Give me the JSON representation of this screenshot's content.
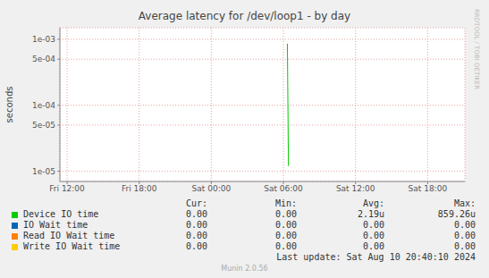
{
  "chart_data": {
    "type": "line",
    "title": "Average latency for /dev/loop1 - by day",
    "y_label": "seconds",
    "log": "y",
    "grid": true,
    "x": [
      30.25,
      30.33,
      30.42,
      30.5
    ],
    "xlim": [
      11.4,
      45.1
    ],
    "xticks": [
      {
        "value": 12,
        "label": "Fri 12:00"
      },
      {
        "value": 18,
        "label": "Fri 18:00"
      },
      {
        "value": 24,
        "label": "Sat 00:00"
      },
      {
        "value": 30,
        "label": "Sat 06:00"
      },
      {
        "value": 36,
        "label": "Sat 12:00"
      },
      {
        "value": 42,
        "label": "Sat 18:00"
      }
    ],
    "ylim": [
      7e-06,
      0.0015
    ],
    "yticks": [
      {
        "value": 1e-05,
        "label": "1e-05"
      },
      {
        "value": 5e-05,
        "label": "5e-05"
      },
      {
        "value": 0.0001,
        "label": "1e-04"
      },
      {
        "value": 0.0005,
        "label": "5e-04"
      },
      {
        "value": 0.001,
        "label": "1e-03"
      }
    ],
    "stats_columns": [
      "Cur:",
      "Min:",
      "Avg:",
      "Max:"
    ],
    "series": [
      {
        "name": "Device IO time",
        "color": "#00cc00",
        "values": [
          null,
          0.00085926,
          1.2e-05,
          null
        ],
        "stats": [
          "0.00",
          "0.00",
          "2.19u",
          "859.26u"
        ]
      },
      {
        "name": "IO Wait time",
        "color": "#0066b3",
        "values": [
          null,
          null,
          null,
          null
        ],
        "stats": [
          "0.00",
          "0.00",
          "0.00",
          "0.00"
        ]
      },
      {
        "name": "Read IO Wait time",
        "color": "#ff8000",
        "values": [
          null,
          null,
          null,
          null
        ],
        "stats": [
          "0.00",
          "0.00",
          "0.00",
          "0.00"
        ]
      },
      {
        "name": "Write IO Wait time",
        "color": "#ffcc00",
        "values": [
          null,
          null,
          null,
          null
        ],
        "stats": [
          "0.00",
          "0.00",
          "0.00",
          "0.00"
        ]
      }
    ],
    "last_update": "Last update: Sat Aug 10 20:40:10 2024",
    "footer": "Munin 2.0.56",
    "watermark": "RRDTOOL / TOBI OETIKER"
  }
}
